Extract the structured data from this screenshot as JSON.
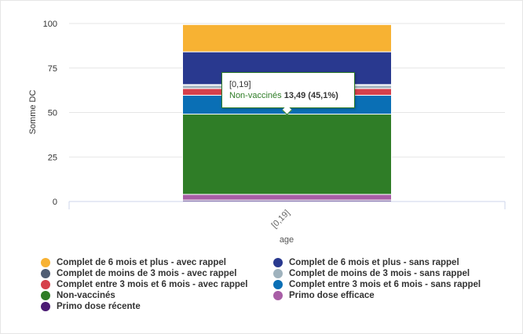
{
  "chart_data": {
    "type": "bar",
    "stacked": true,
    "categories": [
      "[0,19]"
    ],
    "xlabel": "age",
    "ylabel": "Somme DC",
    "ylim": [
      0,
      100
    ],
    "yticks": [
      0,
      25,
      50,
      75,
      100
    ],
    "grid": true,
    "legend_position": "bottom",
    "series": [
      {
        "name": "Primo dose récente",
        "color": "#4b1b73",
        "values": [
          0.8
        ]
      },
      {
        "name": "Primo dose efficace",
        "color": "#a85ea6",
        "values": [
          3.2
        ]
      },
      {
        "name": "Non-vaccinés",
        "color": "#2f7d27",
        "values": [
          45.1
        ]
      },
      {
        "name": "Complet entre 3 mois et 6 mois - sans rappel",
        "color": "#0a6fb5",
        "values": [
          10.6
        ]
      },
      {
        "name": "Complet entre 3 mois et 6 mois - avec rappel",
        "color": "#d6404b",
        "values": [
          3.8
        ]
      },
      {
        "name": "Complet de moins de 3 mois - sans rappel",
        "color": "#9fb2bd",
        "values": [
          1.7
        ]
      },
      {
        "name": "Complet de moins de 3 mois - avec rappel",
        "color": "#4f5d73",
        "values": [
          0.5
        ]
      },
      {
        "name": "Complet de 6 mois et plus - sans rappel",
        "color": "#29398f",
        "values": [
          18.4
        ]
      },
      {
        "name": "Complet de 6 mois et plus - avec rappel",
        "color": "#f7b233",
        "values": [
          15.3
        ]
      }
    ],
    "tooltip": {
      "category": "[0,19]",
      "series": "Non-vaccinés",
      "value_text": "13,49 (45,1%)"
    }
  },
  "legend": [
    {
      "label": "Complet de 6 mois et plus - avec rappel",
      "color": "#f7b233"
    },
    {
      "label": "Complet de 6 mois et plus - sans rappel",
      "color": "#29398f"
    },
    {
      "label": "Complet de moins de 3 mois - avec rappel",
      "color": "#4f5d73"
    },
    {
      "label": "Complet de moins de 3 mois - sans rappel",
      "color": "#9fb2bd"
    },
    {
      "label": "Complet entre 3 mois et 6 mois - avec rappel",
      "color": "#d6404b"
    },
    {
      "label": "Complet entre 3 mois et 6 mois - sans rappel",
      "color": "#0a6fb5"
    },
    {
      "label": "Non-vaccinés",
      "color": "#2f7d27"
    },
    {
      "label": "Primo dose efficace",
      "color": "#a85ea6"
    },
    {
      "label": "Primo dose récente",
      "color": "#4b1b73"
    }
  ]
}
